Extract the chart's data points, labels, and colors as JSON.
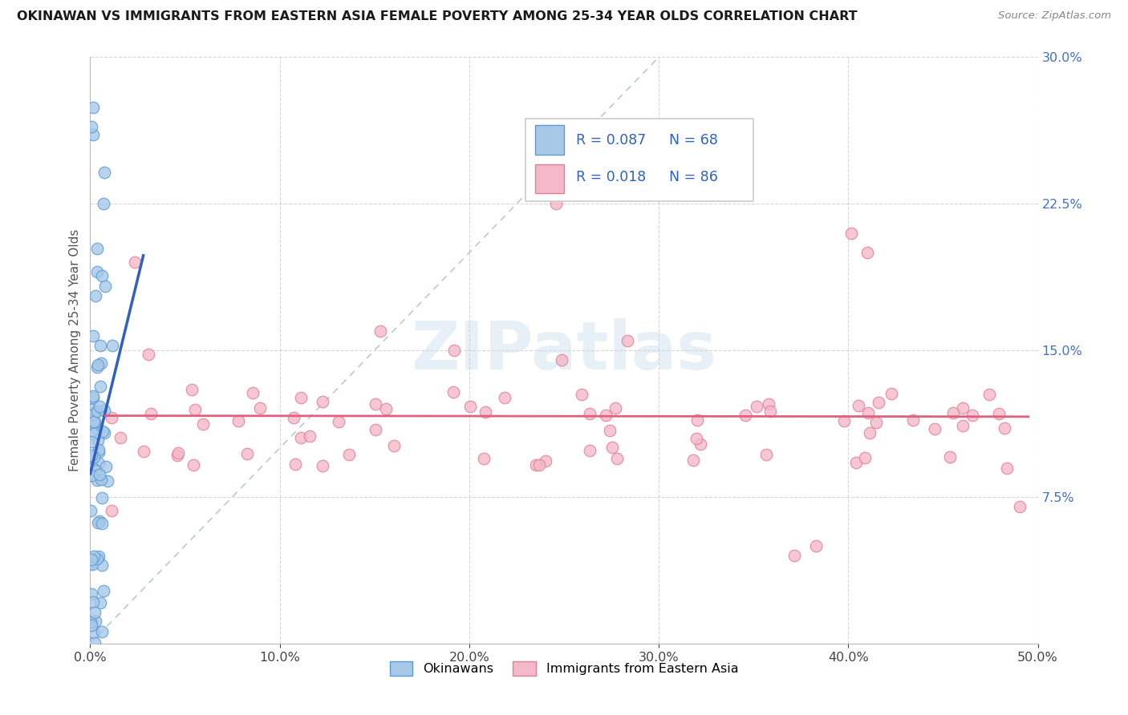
{
  "title": "OKINAWAN VS IMMIGRANTS FROM EASTERN ASIA FEMALE POVERTY AMONG 25-34 YEAR OLDS CORRELATION CHART",
  "source": "Source: ZipAtlas.com",
  "ylabel": "Female Poverty Among 25-34 Year Olds",
  "xlim": [
    0.0,
    0.5
  ],
  "ylim": [
    0.0,
    0.3
  ],
  "okinawan_fill": "#A8C8E8",
  "okinawan_edge": "#5B9BD5",
  "immigrant_fill": "#F4B8C8",
  "immigrant_edge": "#E08098",
  "regression_okinawan_color": "#3060C0",
  "regression_immigrant_color": "#E06080",
  "diagonal_color": "#AABBD0",
  "watermark_color": "#C5D8EC",
  "legend_fill_ok": "#A8C8E8",
  "legend_fill_im": "#F4B8C8",
  "legend_edge_ok": "#5B9BD5",
  "legend_edge_im": "#E08098",
  "legend_text_color": "#3060C0",
  "ytick_color": "#4472C4",
  "ylabel_color": "#555555",
  "grid_color": "#CCCCCC",
  "background": "#FFFFFF",
  "okinawan_seed": 42,
  "immigrant_seed": 99,
  "okinawan_n": 68,
  "immigrant_n": 86
}
